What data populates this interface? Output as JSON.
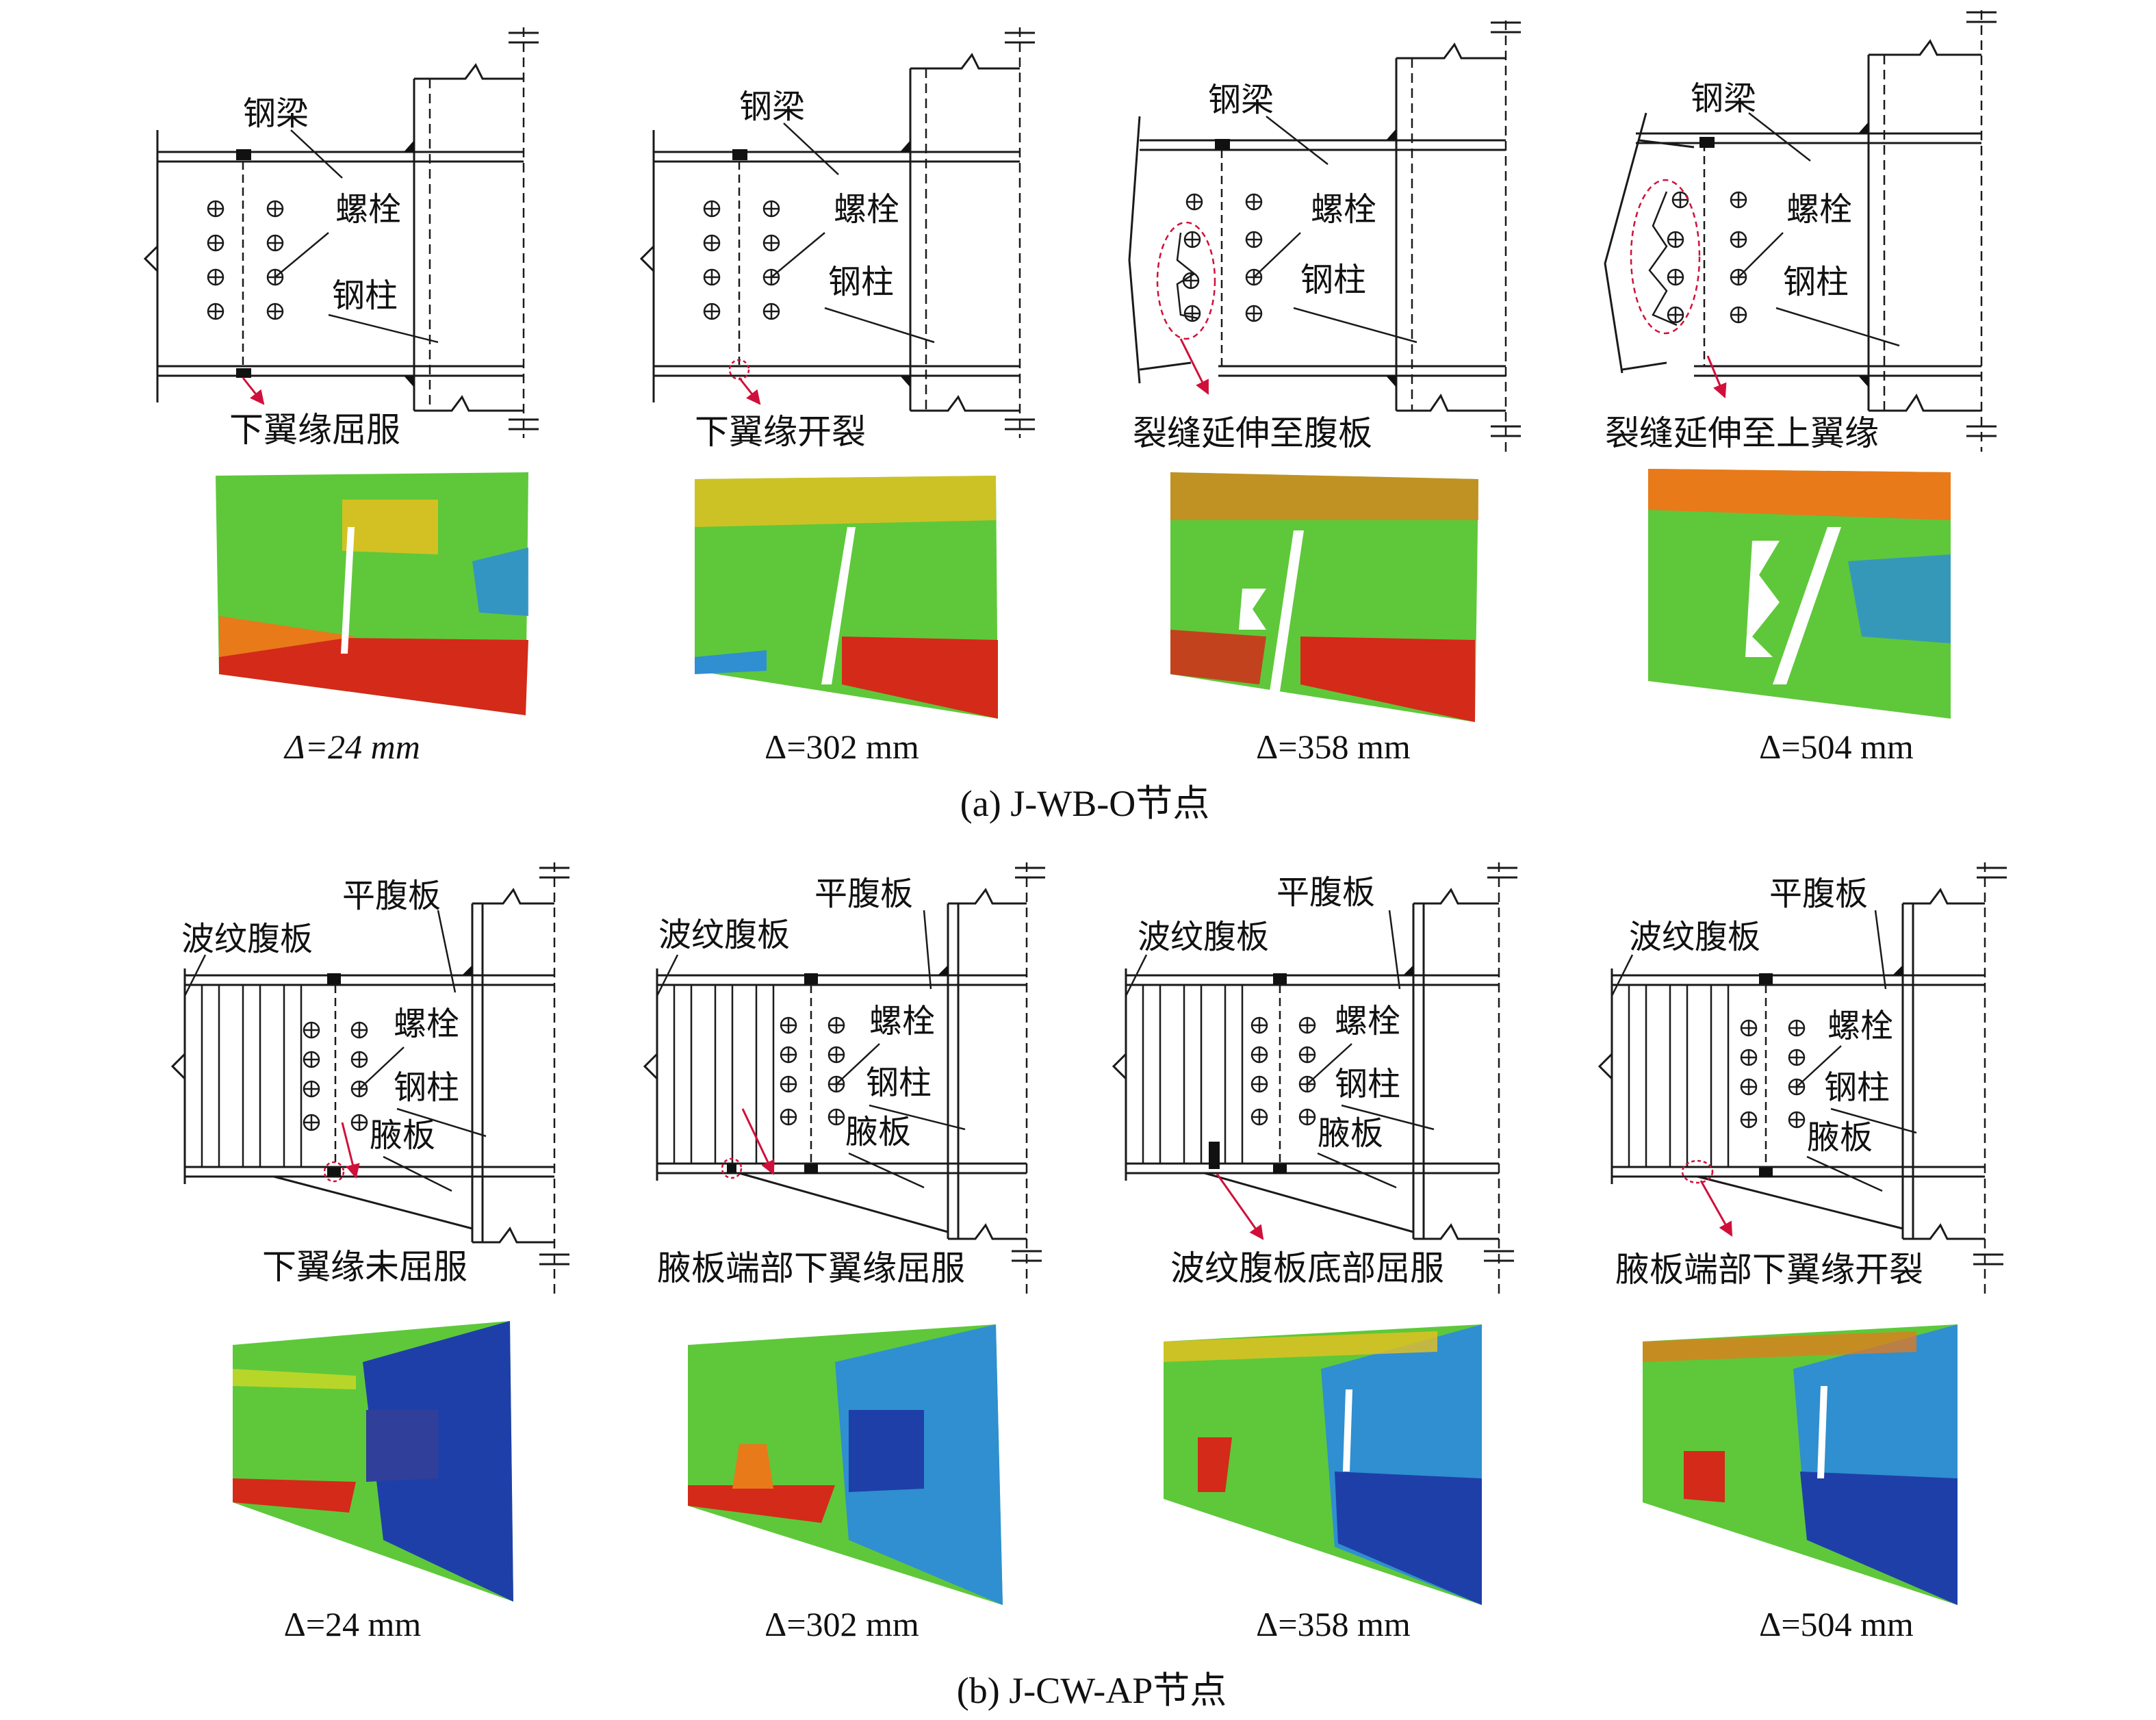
{
  "colors": {
    "line": "#1a1a1a",
    "arrow": "#d0103a",
    "crack_outline": "#d0103a",
    "contour_scale": [
      "#1f3fa8",
      "#2f8fd0",
      "#3cc2c0",
      "#5ec83a",
      "#b8d62a",
      "#e8c020",
      "#e87a1a",
      "#d42a1a"
    ]
  },
  "panel_a": {
    "caption": "(a) J-WB-O节点",
    "labels": {
      "beam": "钢梁",
      "bolt": "螺栓",
      "column": "钢柱"
    },
    "stages": [
      {
        "status": "下翼缘屈服",
        "disp": "Δ=24 mm"
      },
      {
        "status": "下翼缘开裂",
        "disp": "Δ=302 mm"
      },
      {
        "status": "裂缝延伸至腹板",
        "disp": "Δ=358 mm"
      },
      {
        "status": "裂缝延伸至上翼缘",
        "disp": "Δ=504 mm"
      }
    ]
  },
  "panel_b": {
    "caption": "(b) J-CW-AP节点",
    "labels": {
      "flat_web": "平腹板",
      "corrugated_web": "波纹腹板",
      "bolt": "螺栓",
      "column": "钢柱",
      "haunch": "腋板"
    },
    "stages": [
      {
        "status": "下翼缘未屈服",
        "disp": "Δ=24 mm"
      },
      {
        "status": "腋板端部下翼缘屈服",
        "disp": "Δ=302 mm"
      },
      {
        "status": "波纹腹板底部屈服",
        "disp": "Δ=358 mm"
      },
      {
        "status": "腋板端部下翼缘开裂",
        "disp": "Δ=504 mm"
      }
    ]
  }
}
